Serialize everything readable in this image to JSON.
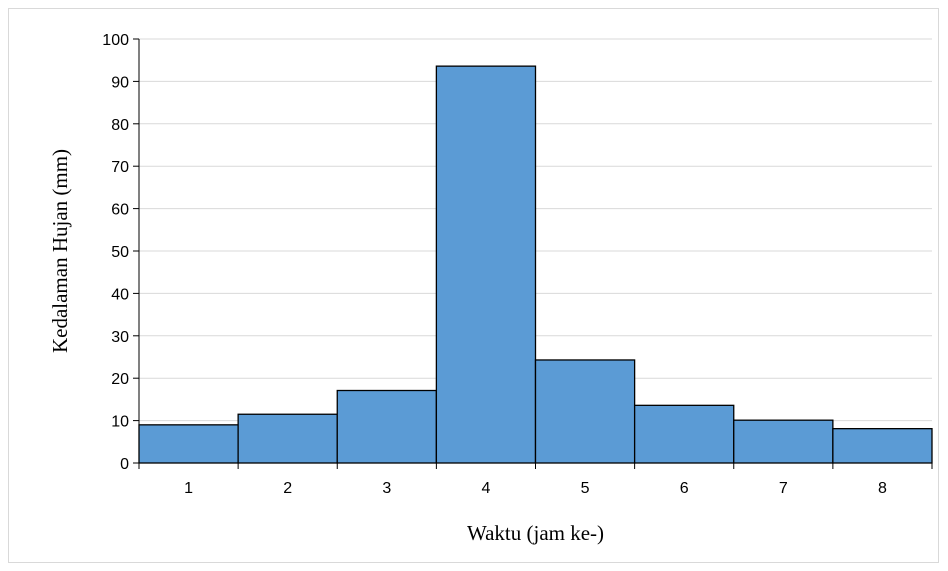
{
  "chart_data": {
    "type": "bar",
    "categories": [
      "1",
      "2",
      "3",
      "4",
      "5",
      "6",
      "7",
      "8"
    ],
    "values": [
      9.0,
      11.5,
      17.1,
      93.6,
      24.3,
      13.6,
      10.1,
      8.1
    ],
    "title": "",
    "xlabel": "Waktu (jam ke-)",
    "ylabel": "Kedalaman Hujan (mm)",
    "ylim": [
      0,
      100
    ],
    "yticks": [
      "0",
      "10",
      "20",
      "30",
      "40",
      "50",
      "60",
      "70",
      "80",
      "90",
      "100"
    ],
    "grid": true,
    "bar_color": "#5b9bd5",
    "bar_edge_color": "#000000"
  }
}
